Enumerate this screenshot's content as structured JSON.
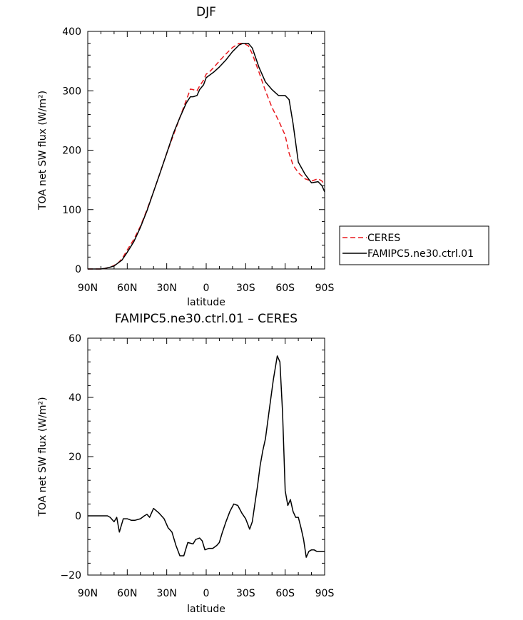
{
  "chart_data": [
    {
      "type": "line",
      "title": "DJF",
      "xlabel": "latitude",
      "ylabel": "TOA net SW flux (W/m²)",
      "xlim": [
        90,
        -90
      ],
      "ylim": [
        0,
        400
      ],
      "x_ticks": [
        "90N",
        "60N",
        "30N",
        "0",
        "30S",
        "60S",
        "90S"
      ],
      "y_ticks": [
        "0",
        "100",
        "200",
        "300",
        "400"
      ],
      "legend": {
        "placement": "right",
        "entries": [
          "CERES",
          "FAMIPC5.ne30.ctrl.01"
        ]
      },
      "series": [
        {
          "name": "CERES",
          "color": "#e8191e",
          "style": "dashed",
          "x": [
            90,
            85,
            80,
            77,
            73,
            70,
            67,
            64,
            60,
            55,
            50,
            45,
            40,
            35,
            30,
            25,
            20,
            15,
            12,
            10,
            7,
            5,
            2,
            0,
            -3,
            -6,
            -10,
            -15,
            -20,
            -25,
            -28,
            -32,
            -35,
            -40,
            -45,
            -50,
            -55,
            -60,
            -63,
            -66,
            -70,
            -75,
            -80,
            -85,
            -88,
            -90
          ],
          "y": [
            0,
            0,
            0,
            1,
            3,
            6,
            10,
            17,
            32,
            50,
            72,
            100,
            130,
            162,
            195,
            225,
            255,
            285,
            303,
            302,
            300,
            308,
            318,
            328,
            333,
            340,
            350,
            362,
            373,
            380,
            380,
            376,
            362,
            332,
            300,
            272,
            250,
            225,
            195,
            175,
            162,
            152,
            148,
            152,
            148,
            142
          ]
        },
        {
          "name": "FAMIPC5.ne30.ctrl.01",
          "color": "#000000",
          "style": "solid",
          "x": [
            90,
            85,
            80,
            77,
            73,
            70,
            67,
            64,
            60,
            55,
            50,
            45,
            40,
            35,
            30,
            25,
            20,
            15,
            12,
            10,
            7,
            5,
            2,
            0,
            -3,
            -6,
            -10,
            -15,
            -20,
            -25,
            -28,
            -32,
            -35,
            -40,
            -45,
            -50,
            -55,
            -60,
            -63,
            -66,
            -70,
            -75,
            -80,
            -85,
            -88,
            -90
          ],
          "y": [
            0,
            0,
            0,
            1,
            3,
            5,
            10,
            15,
            28,
            46,
            70,
            98,
            130,
            162,
            195,
            228,
            255,
            280,
            290,
            290,
            292,
            302,
            310,
            322,
            327,
            332,
            340,
            352,
            366,
            377,
            380,
            380,
            372,
            340,
            315,
            302,
            292,
            292,
            285,
            245,
            180,
            160,
            145,
            147,
            140,
            130
          ]
        }
      ]
    },
    {
      "type": "line",
      "title": "FAMIPC5.ne30.ctrl.01 – CERES",
      "xlabel": "latitude",
      "ylabel": "TOA net SW flux (W/m²)",
      "xlim": [
        90,
        -90
      ],
      "ylim": [
        -20,
        60
      ],
      "x_ticks": [
        "90N",
        "60N",
        "30N",
        "0",
        "30S",
        "60S",
        "90S"
      ],
      "y_ticks": [
        "−20",
        "0",
        "20",
        "40",
        "60"
      ],
      "series": [
        {
          "color": "#000000",
          "style": "solid",
          "x": [
            90,
            85,
            80,
            75,
            73,
            70,
            68,
            66,
            63,
            60,
            57,
            54,
            50,
            47,
            45,
            43,
            40,
            36,
            32,
            29,
            26,
            23,
            20,
            17,
            14,
            10,
            8,
            5,
            3,
            1,
            -2,
            -5,
            -8,
            -10,
            -12,
            -15,
            -18,
            -21,
            -24,
            -27,
            -30,
            -33,
            -35,
            -37,
            -39,
            -41,
            -43,
            -45,
            -48,
            -51,
            -54,
            -56,
            -58,
            -60,
            -62,
            -64,
            -66,
            -68,
            -70,
            -72,
            -74,
            -76,
            -78,
            -80,
            -82,
            -84,
            -87,
            -89,
            -90
          ],
          "y": [
            0,
            0,
            0,
            0,
            -0.5,
            -2,
            -0.5,
            -5.5,
            -1,
            -1,
            -1.5,
            -1.5,
            -1,
            0,
            0.5,
            -0.5,
            2.5,
            1,
            -1,
            -4,
            -5.5,
            -10,
            -13.5,
            -13.5,
            -9,
            -9.5,
            -8,
            -7.5,
            -8.5,
            -11.5,
            -11,
            -11,
            -10,
            -9,
            -6,
            -2,
            1.5,
            4,
            3.5,
            1,
            -1,
            -4.5,
            -2,
            4,
            10,
            17,
            22,
            26,
            36,
            46,
            54,
            52,
            35,
            8.5,
            3.5,
            5.5,
            1.5,
            -0.5,
            -0.5,
            -4,
            -8,
            -14,
            -12,
            -11.5,
            -11.5,
            -12,
            -12,
            -12,
            -12
          ]
        }
      ]
    }
  ]
}
